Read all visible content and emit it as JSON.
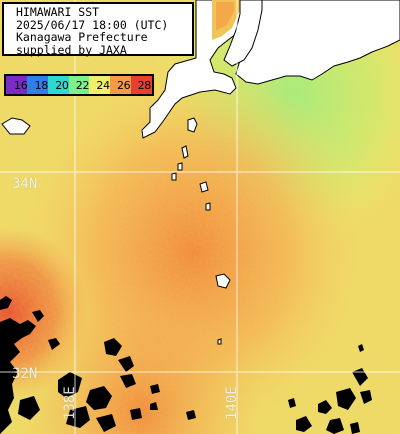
{
  "title": {
    "line1": "HIMAWARI SST",
    "line2": "2025/06/17 18:00 (UTC)",
    "line3": "Kanagawa Prefecture",
    "line4": "supplied by JAXA"
  },
  "legend": {
    "bins": [
      {
        "label": "16",
        "color": "#7b2cc4"
      },
      {
        "label": "18",
        "color": "#2f7fe8"
      },
      {
        "label": "20",
        "color": "#2ed8d0"
      },
      {
        "label": "22",
        "color": "#7df08a"
      },
      {
        "label": "24",
        "color": "#f2f06a"
      },
      {
        "label": "26",
        "color": "#f59a45"
      },
      {
        "label": "28",
        "color": "#e8402e"
      }
    ]
  },
  "grid": {
    "lat_labels": [
      "34N",
      "32N"
    ],
    "lon_labels": [
      "138E",
      "140E"
    ]
  },
  "colors": {
    "land": "#ffffff",
    "no_data": "#000000",
    "grid_line": "#ffffff"
  }
}
